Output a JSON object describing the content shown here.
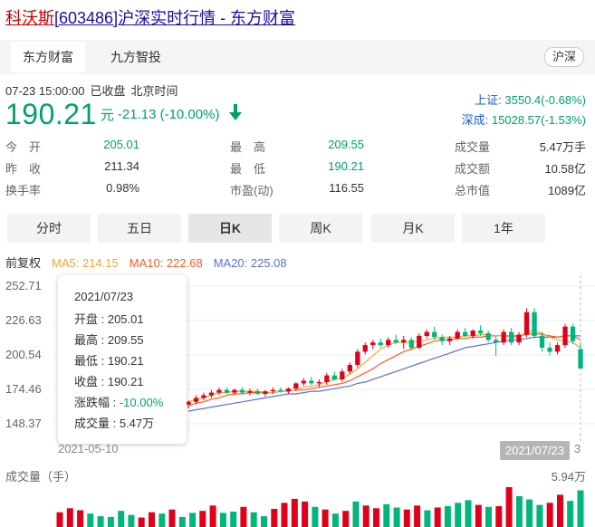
{
  "page": {
    "stock_name": "科沃斯",
    "title_rest": "[603486]沪深实时行情 - 东方财富"
  },
  "tabs": [
    {
      "label": "东方财富"
    },
    {
      "label": "九方智投"
    }
  ],
  "market_label": "沪深",
  "quote": {
    "datetime": "07-23 15:00:00",
    "status": "已收盘",
    "timezone": "北京时间",
    "price": "190.21",
    "unit": "元",
    "change": "-21.13 (-10.00%)"
  },
  "indices": [
    {
      "label": "上证:",
      "value": "3550.4(-0.68%)"
    },
    {
      "label": "深成:",
      "value": "15028.57(-1.53%)"
    }
  ],
  "stats": [
    {
      "label": "今　开",
      "value": "205.01",
      "color": "green"
    },
    {
      "label": "昨　收",
      "value": "211.34",
      "color": "normal"
    },
    {
      "label": "换手率",
      "value": "0.98%",
      "color": "normal"
    },
    {
      "label": "最　高",
      "value": "209.55",
      "color": "green"
    },
    {
      "label": "最　低",
      "value": "190.21",
      "color": "green"
    },
    {
      "label": "市盈(动)",
      "value": "116.55",
      "color": "normal"
    },
    {
      "label": "成交量",
      "value": "5.47万手",
      "color": "normal"
    },
    {
      "label": "成交额",
      "value": "10.58亿",
      "color": "normal"
    },
    {
      "label": "总市值",
      "value": "1089亿",
      "color": "normal"
    }
  ],
  "periods": [
    {
      "label": "分时"
    },
    {
      "label": "五日"
    },
    {
      "label": "日K"
    },
    {
      "label": "周K"
    },
    {
      "label": "月K"
    },
    {
      "label": "1年"
    }
  ],
  "active_period": "日K",
  "ma_row": {
    "fq": "前复权",
    "ma5": "MA5: 214.15",
    "ma10": "MA10: 222.68",
    "ma20": "MA20: 225.08"
  },
  "tooltip": {
    "date": "2021/07/23",
    "open": "开盘 : 205.01",
    "high": "最高 : 209.55",
    "low": "最低 : 190.21",
    "close": "收盘 : 190.21",
    "pct_label": "涨跌幅 : ",
    "pct_value": "-10.00%",
    "volume": "成交量 : 5.47万"
  },
  "axis": {
    "date_start": "2021-05-10",
    "date_end": "2021/07/23",
    "date_end_tail": "3"
  },
  "volume": {
    "label": "成交量（手）",
    "max_label": "5.94万"
  },
  "colors": {
    "up": "#e0001a",
    "down": "#00b67a",
    "ma5": "#f0a830",
    "ma10": "#ff5a1f",
    "ma20": "#5b6fe0",
    "accent_green": "#00a06c"
  },
  "chart_data": {
    "type": "candlestick",
    "y_ticks": [
      "252.71",
      "226.63",
      "200.54",
      "174.46",
      "148.37"
    ],
    "ylim": [
      148.37,
      252.71
    ],
    "x_start": "2021-05-10",
    "x_end": "2021-07-23",
    "candles": [
      {
        "o": 163,
        "h": 166,
        "l": 160,
        "c": 165
      },
      {
        "o": 165,
        "h": 170,
        "l": 163,
        "c": 168
      },
      {
        "o": 168,
        "h": 172,
        "l": 166,
        "c": 170
      },
      {
        "o": 170,
        "h": 174,
        "l": 168,
        "c": 172
      },
      {
        "o": 172,
        "h": 176,
        "l": 170,
        "c": 174
      },
      {
        "o": 174,
        "h": 176,
        "l": 171,
        "c": 172
      },
      {
        "o": 172,
        "h": 175,
        "l": 170,
        "c": 174
      },
      {
        "o": 174,
        "h": 176,
        "l": 171,
        "c": 172
      },
      {
        "o": 172,
        "h": 175,
        "l": 170,
        "c": 173
      },
      {
        "o": 173,
        "h": 175,
        "l": 170,
        "c": 171
      },
      {
        "o": 171,
        "h": 174,
        "l": 169,
        "c": 173
      },
      {
        "o": 173,
        "h": 176,
        "l": 171,
        "c": 174
      },
      {
        "o": 174,
        "h": 176,
        "l": 172,
        "c": 173
      },
      {
        "o": 173,
        "h": 176,
        "l": 171,
        "c": 175
      },
      {
        "o": 175,
        "h": 180,
        "l": 173,
        "c": 179
      },
      {
        "o": 179,
        "h": 183,
        "l": 177,
        "c": 181
      },
      {
        "o": 181,
        "h": 184,
        "l": 178,
        "c": 179
      },
      {
        "o": 179,
        "h": 182,
        "l": 176,
        "c": 180
      },
      {
        "o": 180,
        "h": 187,
        "l": 178,
        "c": 185
      },
      {
        "o": 185,
        "h": 188,
        "l": 181,
        "c": 182
      },
      {
        "o": 182,
        "h": 190,
        "l": 180,
        "c": 188
      },
      {
        "o": 188,
        "h": 195,
        "l": 186,
        "c": 193
      },
      {
        "o": 193,
        "h": 205,
        "l": 191,
        "c": 203
      },
      {
        "o": 203,
        "h": 210,
        "l": 201,
        "c": 208
      },
      {
        "o": 208,
        "h": 212,
        "l": 205,
        "c": 210
      },
      {
        "o": 210,
        "h": 213,
        "l": 206,
        "c": 208
      },
      {
        "o": 208,
        "h": 214,
        "l": 206,
        "c": 212
      },
      {
        "o": 212,
        "h": 216,
        "l": 209,
        "c": 210
      },
      {
        "o": 210,
        "h": 215,
        "l": 205,
        "c": 212
      },
      {
        "o": 212,
        "h": 214,
        "l": 204,
        "c": 206
      },
      {
        "o": 206,
        "h": 217,
        "l": 205,
        "c": 215
      },
      {
        "o": 215,
        "h": 220,
        "l": 213,
        "c": 218
      },
      {
        "o": 218,
        "h": 222,
        "l": 212,
        "c": 214
      },
      {
        "o": 214,
        "h": 216,
        "l": 208,
        "c": 211
      },
      {
        "o": 211,
        "h": 215,
        "l": 208,
        "c": 213
      },
      {
        "o": 213,
        "h": 220,
        "l": 212,
        "c": 218
      },
      {
        "o": 218,
        "h": 221,
        "l": 214,
        "c": 215
      },
      {
        "o": 215,
        "h": 220,
        "l": 213,
        "c": 219
      },
      {
        "o": 219,
        "h": 223,
        "l": 215,
        "c": 217
      },
      {
        "o": 217,
        "h": 219,
        "l": 210,
        "c": 212
      },
      {
        "o": 212,
        "h": 215,
        "l": 200,
        "c": 210
      },
      {
        "o": 210,
        "h": 220,
        "l": 208,
        "c": 218
      },
      {
        "o": 218,
        "h": 221,
        "l": 208,
        "c": 210
      },
      {
        "o": 210,
        "h": 218,
        "l": 208,
        "c": 216
      },
      {
        "o": 216,
        "h": 236,
        "l": 214,
        "c": 233
      },
      {
        "o": 233,
        "h": 236,
        "l": 213,
        "c": 215
      },
      {
        "o": 215,
        "h": 218,
        "l": 203,
        "c": 206
      },
      {
        "o": 206,
        "h": 210,
        "l": 200,
        "c": 203
      },
      {
        "o": 203,
        "h": 210,
        "l": 201,
        "c": 208
      },
      {
        "o": 208,
        "h": 224,
        "l": 206,
        "c": 222
      },
      {
        "o": 222,
        "h": 224,
        "l": 209,
        "c": 211
      },
      {
        "o": 205,
        "h": 209.55,
        "l": 190.21,
        "c": 190.21
      }
    ],
    "ma5": [
      165,
      167,
      168,
      170,
      172,
      172,
      173,
      173,
      173,
      173,
      172,
      172,
      173,
      173,
      174,
      176,
      177,
      178,
      180,
      182,
      183,
      186,
      190,
      195,
      200,
      205,
      208,
      210,
      210,
      210,
      211,
      212,
      213,
      214,
      214,
      214,
      215,
      215,
      216,
      216,
      215,
      215,
      214,
      214,
      218,
      219,
      217,
      214,
      212,
      211,
      210,
      206
    ],
    "ma10": [
      162,
      164,
      165,
      167,
      168,
      170,
      171,
      171,
      172,
      172,
      172,
      172,
      173,
      173,
      174,
      174,
      175,
      176,
      177,
      178,
      179,
      181,
      184,
      187,
      190,
      194,
      197,
      200,
      203,
      205,
      207,
      209,
      211,
      212,
      212,
      213,
      213,
      214,
      214,
      215,
      215,
      215,
      215,
      215,
      216,
      217,
      216,
      215,
      214,
      215,
      215,
      212
    ],
    "ma20": [
      158,
      159,
      160,
      161,
      162,
      163,
      164,
      165,
      166,
      167,
      168,
      169,
      170,
      171,
      171,
      172,
      173,
      173,
      174,
      175,
      176,
      177,
      179,
      180,
      182,
      184,
      186,
      188,
      190,
      192,
      194,
      196,
      198,
      200,
      202,
      204,
      206,
      207,
      208,
      209,
      210,
      211,
      212,
      212,
      213,
      214,
      214,
      214,
      214,
      215,
      215,
      215
    ],
    "volume": [
      {
        "v": 2.2,
        "up": true
      },
      {
        "v": 2.8,
        "up": true
      },
      {
        "v": 2.5,
        "up": true
      },
      {
        "v": 2.0,
        "up": false
      },
      {
        "v": 1.6,
        "up": false
      },
      {
        "v": 1.5,
        "up": false
      },
      {
        "v": 2.4,
        "up": false
      },
      {
        "v": 1.8,
        "up": false
      },
      {
        "v": 1.4,
        "up": true
      },
      {
        "v": 2.2,
        "up": true
      },
      {
        "v": 2.0,
        "up": false
      },
      {
        "v": 2.6,
        "up": true
      },
      {
        "v": 1.5,
        "up": false
      },
      {
        "v": 2.1,
        "up": false
      },
      {
        "v": 2.4,
        "up": true
      },
      {
        "v": 3.2,
        "up": true
      },
      {
        "v": 2.1,
        "up": false
      },
      {
        "v": 2.3,
        "up": false
      },
      {
        "v": 3.0,
        "up": true
      },
      {
        "v": 2.2,
        "up": false
      },
      {
        "v": 1.6,
        "up": false
      },
      {
        "v": 2.7,
        "up": true
      },
      {
        "v": 3.6,
        "up": true
      },
      {
        "v": 4.2,
        "up": true
      },
      {
        "v": 3.8,
        "up": true
      },
      {
        "v": 3.0,
        "up": false
      },
      {
        "v": 2.6,
        "up": true
      },
      {
        "v": 2.0,
        "up": false
      },
      {
        "v": 2.4,
        "up": true
      },
      {
        "v": 3.8,
        "up": false
      },
      {
        "v": 3.2,
        "up": true
      },
      {
        "v": 2.8,
        "up": true
      },
      {
        "v": 3.4,
        "up": false
      },
      {
        "v": 2.9,
        "up": false
      },
      {
        "v": 2.6,
        "up": true
      },
      {
        "v": 3.2,
        "up": true
      },
      {
        "v": 2.5,
        "up": false
      },
      {
        "v": 2.9,
        "up": true
      },
      {
        "v": 3.1,
        "up": false
      },
      {
        "v": 3.6,
        "up": false
      },
      {
        "v": 4.0,
        "up": false
      },
      {
        "v": 3.3,
        "up": true
      },
      {
        "v": 3.0,
        "up": false
      },
      {
        "v": 3.1,
        "up": true
      },
      {
        "v": 5.94,
        "up": true
      },
      {
        "v": 4.6,
        "up": false
      },
      {
        "v": 4.1,
        "up": false
      },
      {
        "v": 3.3,
        "up": false
      },
      {
        "v": 3.6,
        "up": true
      },
      {
        "v": 4.8,
        "up": true
      },
      {
        "v": 3.9,
        "up": false
      },
      {
        "v": 5.47,
        "up": false
      }
    ],
    "volume_max": 5.94
  }
}
